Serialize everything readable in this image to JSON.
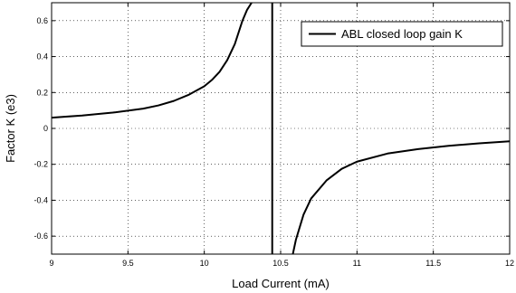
{
  "chart_data": {
    "type": "line",
    "title": "",
    "xlabel": "Load Current (mA)",
    "ylabel": "Factor K (e3)",
    "xlim": [
      9,
      12
    ],
    "ylim": [
      -0.7,
      0.7
    ],
    "xticks": [
      9,
      9.5,
      10,
      10.5,
      11,
      11.5,
      12
    ],
    "xtick_labels": [
      "9",
      "9.5",
      "10",
      "10.5",
      "11",
      "11.5",
      "12"
    ],
    "yticks": [
      -0.6,
      -0.4,
      -0.2,
      0,
      0.2,
      0.4,
      0.6
    ],
    "ytick_labels": [
      "-0.6",
      "-0.4",
      "-0.2",
      "0",
      "0.2",
      "0.4",
      "0.6"
    ],
    "grid": true,
    "legend_position": "top-right",
    "series": [
      {
        "name": "ABL closed loop gain K",
        "color": "#000000",
        "segments": [
          {
            "x": [
              9.0,
              9.2,
              9.4,
              9.6,
              9.7,
              9.8,
              9.9,
              10.0,
              10.05,
              10.1,
              10.15,
              10.2,
              10.25,
              10.28,
              10.31
            ],
            "y": [
              0.06,
              0.072,
              0.088,
              0.11,
              0.128,
              0.153,
              0.188,
              0.235,
              0.27,
              0.315,
              0.38,
              0.47,
              0.6,
              0.66,
              0.7
            ]
          },
          {
            "x": [
              10.445,
              10.445
            ],
            "y": [
              0.7,
              -0.7
            ]
          },
          {
            "x": [
              10.58,
              10.6,
              10.65,
              10.7,
              10.8,
              10.9,
              11.0,
              11.2,
              11.4,
              11.6,
              11.8,
              12.0
            ],
            "y": [
              -0.7,
              -0.62,
              -0.48,
              -0.39,
              -0.29,
              -0.225,
              -0.185,
              -0.14,
              -0.115,
              -0.097,
              -0.083,
              -0.072
            ]
          }
        ]
      }
    ]
  }
}
